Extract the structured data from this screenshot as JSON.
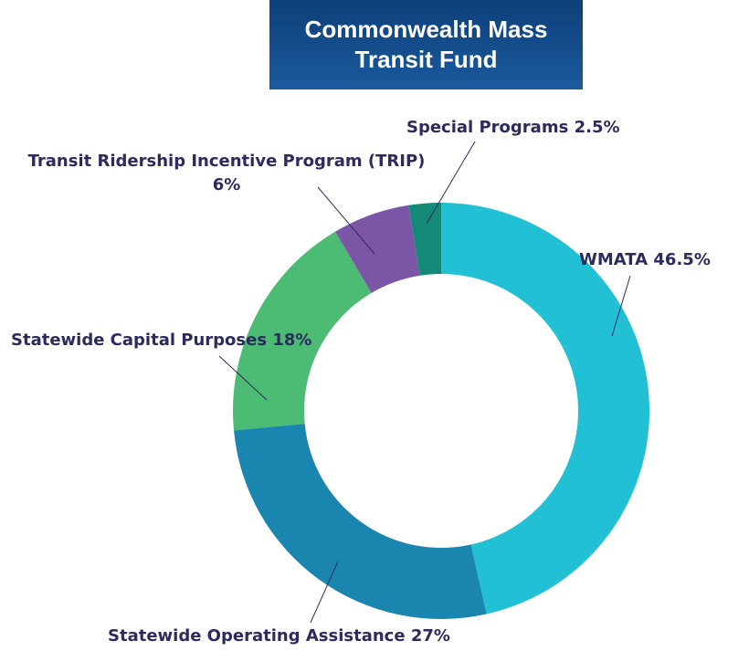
{
  "chart_data": {
    "type": "donut",
    "title": "Commonwealth Mass Transit Fund",
    "categories": [
      "WMATA",
      "Statewide Operating Assistance",
      "Statewide Capital Purposes",
      "Transit Ridership Incentive Program (TRIP)",
      "Special Programs"
    ],
    "values": [
      46.5,
      27,
      18,
      6,
      2.5
    ],
    "value_labels": [
      "46.5%",
      "27%",
      "18%",
      "6%",
      "2.5%"
    ],
    "colors": [
      "#22c0d4",
      "#1a86b0",
      "#4cbb74",
      "#7b55a6",
      "#138a78"
    ]
  }
}
